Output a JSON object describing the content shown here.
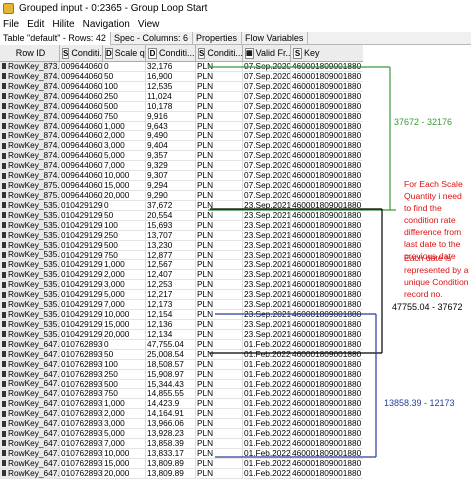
{
  "window": {
    "title": "Grouped input - 0:2365 - Group Loop Start"
  },
  "menu": [
    "File",
    "Edit",
    "Hilite",
    "Navigation",
    "View"
  ],
  "tabs": [
    "Table \"default\" - Rows: 42",
    "Spec - Columns: 6",
    "Properties",
    "Flow Variables"
  ],
  "columns": [
    {
      "type": "",
      "label": "Row ID"
    },
    {
      "type": "S",
      "label": "Conditi..."
    },
    {
      "type": "D",
      "label": "Scale q..."
    },
    {
      "type": "D",
      "label": "Conditi..."
    },
    {
      "type": "S",
      "label": "Conditi..."
    },
    {
      "type": "",
      "label": "Valid Fr..."
    },
    {
      "type": "S",
      "label": "Key"
    }
  ],
  "rows": [
    [
      "RowKey_873...",
      "0096440608",
      "0",
      "32,176",
      "PLN",
      "07.Sep.2020",
      "460001809001880"
    ],
    [
      "RowKey_874...",
      "0096440608",
      "50",
      "16,900",
      "PLN",
      "07.Sep.2020",
      "460001809001880"
    ],
    [
      "RowKey_874...",
      "0096440608",
      "100",
      "12,535",
      "PLN",
      "07.Sep.2020",
      "460001809001880"
    ],
    [
      "RowKey_874...",
      "0096440608",
      "250",
      "11,024",
      "PLN",
      "07.Sep.2020",
      "460001809001880"
    ],
    [
      "RowKey_874...",
      "0096440608",
      "500",
      "10,178",
      "PLN",
      "07.Sep.2020",
      "460001809001880"
    ],
    [
      "RowKey_874...",
      "0096440608",
      "750",
      "9,916",
      "PLN",
      "07.Sep.2020",
      "460001809001880"
    ],
    [
      "RowKey_874...",
      "0096440608",
      "1,000",
      "9,643",
      "PLN",
      "07.Sep.2020",
      "460001809001880"
    ],
    [
      "RowKey_874...",
      "0096440608",
      "2,000",
      "9,490",
      "PLN",
      "07.Sep.2020",
      "460001809001880"
    ],
    [
      "RowKey_874...",
      "0096440608",
      "3,000",
      "9,404",
      "PLN",
      "07.Sep.2020",
      "460001809001880"
    ],
    [
      "RowKey_874...",
      "0096440608",
      "5,000",
      "9,357",
      "PLN",
      "07.Sep.2020",
      "460001809001880"
    ],
    [
      "RowKey_874...",
      "0096440608",
      "7,000",
      "9,329",
      "PLN",
      "07.Sep.2020",
      "460001809001880"
    ],
    [
      "RowKey_874...",
      "0096440608",
      "10,000",
      "9,307",
      "PLN",
      "07.Sep.2020",
      "460001809001880"
    ],
    [
      "RowKey_875...",
      "0096440608",
      "15,000",
      "9,294",
      "PLN",
      "07.Sep.2020",
      "460001809001880"
    ],
    [
      "RowKey_875...",
      "0096440608",
      "20,000",
      "9,290",
      "PLN",
      "07.Sep.2020",
      "460001809001880"
    ],
    [
      "RowKey_535...",
      "0104291290",
      "0",
      "37,672",
      "PLN",
      "23.Sep.2021",
      "460001809001880"
    ],
    [
      "RowKey_535...",
      "0104291290",
      "50",
      "20,554",
      "PLN",
      "23.Sep.2021",
      "460001809001880"
    ],
    [
      "RowKey_535...",
      "0104291290",
      "100",
      "15,693",
      "PLN",
      "23.Sep.2021",
      "460001809001880"
    ],
    [
      "RowKey_535...",
      "0104291290",
      "250",
      "13,707",
      "PLN",
      "23.Sep.2021",
      "460001809001880"
    ],
    [
      "RowKey_535...",
      "0104291290",
      "500",
      "13,230",
      "PLN",
      "23.Sep.2021",
      "460001809001880"
    ],
    [
      "RowKey_535...",
      "0104291290",
      "750",
      "12,877",
      "PLN",
      "23.Sep.2021",
      "460001809001880"
    ],
    [
      "RowKey_535...",
      "0104291290",
      "1,000",
      "12,567",
      "PLN",
      "23.Sep.2021",
      "460001809001880"
    ],
    [
      "RowKey_535...",
      "0104291290",
      "2,000",
      "12,407",
      "PLN",
      "23.Sep.2021",
      "460001809001880"
    ],
    [
      "RowKey_535...",
      "0104291290",
      "3,000",
      "12,253",
      "PLN",
      "23.Sep.2021",
      "460001809001880"
    ],
    [
      "RowKey_535...",
      "0104291290",
      "5,000",
      "12,217",
      "PLN",
      "23.Sep.2021",
      "460001809001880"
    ],
    [
      "RowKey_535...",
      "0104291290",
      "7,000",
      "12,173",
      "PLN",
      "23.Sep.2021",
      "460001809001880"
    ],
    [
      "RowKey_535...",
      "0104291290",
      "10,000",
      "12,154",
      "PLN",
      "23.Sep.2021",
      "460001809001880"
    ],
    [
      "RowKey_535...",
      "0104291290",
      "15,000",
      "12,136",
      "PLN",
      "23.Sep.2021",
      "460001809001880"
    ],
    [
      "RowKey_535...",
      "0104291290",
      "20,000",
      "12,134",
      "PLN",
      "23.Sep.2021",
      "460001809001880"
    ],
    [
      "RowKey_647...",
      "0107628937",
      "0",
      "47,755.04",
      "PLN",
      "01.Feb.2022",
      "460001809001880"
    ],
    [
      "RowKey_647...",
      "0107628937",
      "50",
      "25,008.54",
      "PLN",
      "01.Feb.2022",
      "460001809001880"
    ],
    [
      "RowKey_647...",
      "0107628937",
      "100",
      "18,508.57",
      "PLN",
      "01.Feb.2022",
      "460001809001880"
    ],
    [
      "RowKey_647...",
      "0107628937",
      "250",
      "15,908.97",
      "PLN",
      "01.Feb.2022",
      "460001809001880"
    ],
    [
      "RowKey_647...",
      "0107628937",
      "500",
      "15,344.43",
      "PLN",
      "01.Feb.2022",
      "460001809001880"
    ],
    [
      "RowKey_647...",
      "0107628937",
      "750",
      "14,855.55",
      "PLN",
      "01.Feb.2022",
      "460001809001880"
    ],
    [
      "RowKey_647...",
      "0107628937",
      "1,000",
      "14,423.9",
      "PLN",
      "01.Feb.2022",
      "460001809001880"
    ],
    [
      "RowKey_647...",
      "0107628937",
      "2,000",
      "14,164.91",
      "PLN",
      "01.Feb.2022",
      "460001809001880"
    ],
    [
      "RowKey_647...",
      "0107628937",
      "3,000",
      "13,966.06",
      "PLN",
      "01.Feb.2022",
      "460001809001880"
    ],
    [
      "RowKey_647...",
      "0107628937",
      "5,000",
      "13,928.23",
      "PLN",
      "01.Feb.2022",
      "460001809001880"
    ],
    [
      "RowKey_647...",
      "0107628937",
      "7,000",
      "13,858.39",
      "PLN",
      "01.Feb.2022",
      "460001809001880"
    ],
    [
      "RowKey_647...",
      "0107628937",
      "10,000",
      "13,833.17",
      "PLN",
      "01.Feb.2022",
      "460001809001880"
    ],
    [
      "RowKey_647...",
      "0107628937",
      "15,000",
      "13,809.89",
      "PLN",
      "01.Feb.2022",
      "460001809001880"
    ],
    [
      "RowKey_647...",
      "0107628937",
      "20,000",
      "13,809.89",
      "PLN",
      "01.Feb.2022",
      "460001809001880"
    ]
  ],
  "annotations": {
    "green": "37672 - 32176",
    "red_explain": "For Each Scale Quantity i need to find the condition rate difference from last date to the previous date",
    "red_note": "Each date is represented by a unique Condition record no.",
    "black": "47755.04 - 37672",
    "blue": "13858.39 - 12173"
  },
  "colors": {
    "green": "#3a9a3a",
    "red": "#dd1111",
    "black": "#000000",
    "blue": "#2b3d9a"
  }
}
